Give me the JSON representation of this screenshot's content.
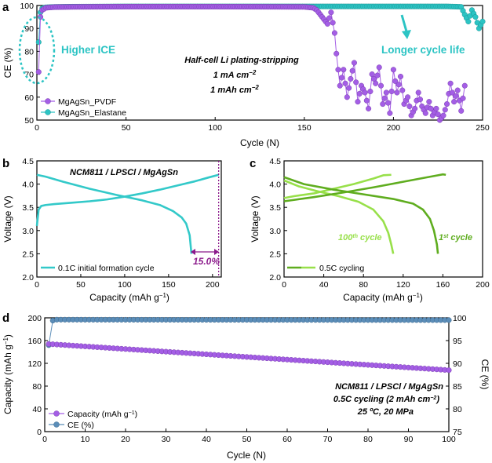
{
  "colors": {
    "pvdf": "#a45ee5",
    "elastane": "#2cc4c4",
    "formation": "#33c9c9",
    "percent": "#8b1a8b",
    "first_cycle": "#5fad1f",
    "hundredth_cycle": "#98e04a",
    "capacity": "#a45ee5",
    "ce_d": "#5b8db8"
  },
  "panel_labels": {
    "a": "a",
    "b": "b",
    "c": "c",
    "d": "d"
  },
  "chart_data": [
    {
      "id": "a",
      "type": "scatter",
      "xlabel": "Cycle (N)",
      "ylabel": "CE (%)",
      "xlim": [
        0,
        250
      ],
      "ylim": [
        50,
        100
      ],
      "xticks": [
        "0",
        "50",
        "100",
        "150",
        "200",
        "250"
      ],
      "yticks": [
        "50",
        "60",
        "70",
        "80",
        "90",
        "100"
      ],
      "annotations": {
        "higher_ice": "Higher ICE",
        "longer_life": "Longer cycle life",
        "title_line1": "Half-cell Li plating-stripping",
        "title_line2": "1 mA cm",
        "title_line2_sup": "−2",
        "title_line3": "1 mAh cm",
        "title_line3_sup": "−2"
      },
      "legend": [
        "MgAgSn_PVDF",
        "MgAgSn_Elastane"
      ],
      "series": [
        {
          "name": "MgAgSn_PVDF",
          "x": [
            1,
            2,
            3,
            4,
            5,
            10,
            20,
            50,
            100,
            150,
            155,
            157,
            159,
            161,
            163,
            165,
            167,
            168,
            170,
            172,
            174,
            176,
            178,
            180,
            182,
            184,
            186,
            188,
            190,
            192,
            194,
            196,
            198,
            200,
            202,
            204,
            206,
            208,
            210,
            212,
            214,
            216,
            218,
            220,
            222,
            224,
            226,
            228,
            230,
            232,
            234,
            236,
            238,
            240
          ],
          "values": [
            71,
            95,
            98,
            98.5,
            99,
            99.3,
            99.4,
            99.5,
            99.5,
            99.4,
            99,
            98,
            96,
            94,
            92,
            97,
            88,
            79,
            65,
            72,
            60,
            68,
            75,
            58,
            65,
            62,
            55,
            70,
            66,
            73,
            57,
            62,
            53,
            72,
            62,
            69,
            57,
            60,
            52,
            55,
            62,
            56,
            53,
            58,
            52,
            55,
            50,
            52,
            57,
            66,
            58,
            63,
            54,
            65
          ]
        },
        {
          "name": "MgAgSn_Elastane",
          "x": [
            1,
            2,
            3,
            4,
            5,
            10,
            20,
            50,
            100,
            150,
            200,
            230,
            235,
            238,
            240,
            242,
            244,
            246,
            248,
            250
          ],
          "values": [
            84,
            97,
            98.7,
            99,
            99.2,
            99.4,
            99.5,
            99.6,
            99.6,
            99.6,
            99.6,
            99.6,
            99.5,
            99.4,
            96,
            93,
            98,
            95,
            90,
            93
          ]
        }
      ]
    },
    {
      "id": "b",
      "type": "line",
      "xlabel": "Capacity (mAh g",
      "xlabel_sup": "−1",
      "xlabel_end": ")",
      "ylabel": "Voltage (V)",
      "xlim": [
        0,
        210
      ],
      "ylim": [
        2.0,
        4.5
      ],
      "xticks": [
        "0",
        "50",
        "100",
        "150",
        "200"
      ],
      "yticks": [
        "2.0",
        "2.5",
        "3.0",
        "3.5",
        "4.0",
        "4.5"
      ],
      "title": "NCM811 / LPSCl / MgAgSn",
      "percent_label": "15.0%",
      "legend": [
        "0.1C initial formation cycle"
      ],
      "marker_x": 207,
      "series": [
        {
          "name": "charge",
          "x": [
            0,
            2,
            5,
            10,
            20,
            40,
            60,
            80,
            100,
            120,
            140,
            160,
            180,
            195,
            207
          ],
          "values": [
            3.1,
            3.45,
            3.53,
            3.55,
            3.57,
            3.6,
            3.63,
            3.67,
            3.73,
            3.8,
            3.88,
            3.97,
            4.06,
            4.14,
            4.2
          ]
        },
        {
          "name": "discharge",
          "x": [
            0,
            10,
            30,
            60,
            90,
            120,
            140,
            155,
            165,
            170,
            174,
            176
          ],
          "values": [
            4.2,
            4.16,
            4.05,
            3.9,
            3.77,
            3.65,
            3.55,
            3.42,
            3.28,
            3.15,
            2.9,
            2.5
          ]
        }
      ]
    },
    {
      "id": "c",
      "type": "line",
      "xlabel": "Capacity (mAh g",
      "xlabel_sup": "−1",
      "xlabel_end": ")",
      "ylabel": "Voltage (V)",
      "xlim": [
        0,
        200
      ],
      "ylim": [
        2.0,
        4.5
      ],
      "xticks": [
        "0",
        "40",
        "80",
        "120",
        "160",
        "200"
      ],
      "yticks": [
        "2.0",
        "2.5",
        "3.0",
        "3.5",
        "4.0",
        "4.5"
      ],
      "label_100": "100",
      "label_100_sup": "th",
      "label_100_end": " cycle",
      "label_1": "1",
      "label_1_sup": "st",
      "label_1_end": " cycle",
      "legend": [
        "0.5C cycling"
      ],
      "series": [
        {
          "name": "1st charge",
          "x": [
            0,
            10,
            30,
            60,
            90,
            120,
            140,
            155,
            160,
            163
          ],
          "values": [
            3.63,
            3.66,
            3.72,
            3.82,
            3.93,
            4.05,
            4.13,
            4.19,
            4.21,
            4.2
          ]
        },
        {
          "name": "1st discharge",
          "x": [
            0,
            20,
            50,
            80,
            110,
            130,
            140,
            147,
            151,
            154,
            155
          ],
          "values": [
            4.15,
            4.0,
            3.88,
            3.78,
            3.68,
            3.58,
            3.45,
            3.25,
            3.0,
            2.7,
            2.5
          ]
        },
        {
          "name": "100th charge",
          "x": [
            0,
            10,
            30,
            50,
            70,
            90,
            100,
            108
          ],
          "values": [
            3.7,
            3.74,
            3.8,
            3.9,
            4.0,
            4.12,
            4.19,
            4.2
          ]
        },
        {
          "name": "100th discharge",
          "x": [
            0,
            15,
            35,
            55,
            75,
            90,
            100,
            105,
            108,
            110
          ],
          "values": [
            4.08,
            3.95,
            3.84,
            3.74,
            3.62,
            3.45,
            3.2,
            2.95,
            2.7,
            2.5
          ]
        }
      ]
    },
    {
      "id": "d",
      "type": "scatter",
      "xlabel": "Cycle (N)",
      "ylabel_left": "Capacity (mAh g",
      "ylabel_left_sup": "−1",
      "ylabel_left_end": ")",
      "ylabel_right": "CE (%)",
      "xlim": [
        0,
        100
      ],
      "ylim_left": [
        0,
        200
      ],
      "ylim_right": [
        75,
        100
      ],
      "xticks": [
        "0",
        "10",
        "20",
        "30",
        "40",
        "50",
        "60",
        "70",
        "80",
        "90",
        "100"
      ],
      "yticks_left": [
        "0",
        "40",
        "80",
        "120",
        "160",
        "200"
      ],
      "yticks_right": [
        "75",
        "80",
        "85",
        "90",
        "95",
        "100"
      ],
      "annotations": {
        "line1": "NCM811 / LPSCl / MgAgSn",
        "line2": "0.5C cycling (2 mAh cm",
        "line2_sup": "−2",
        "line2_end": ")",
        "line3": "25 ºC, 20 MPa"
      },
      "legend": [
        "Capacity (mAh g",
        "CE (%)"
      ],
      "legend_cap_sup": "−1",
      "legend_cap_end": ")",
      "series": [
        {
          "name": "Capacity",
          "start": 154,
          "end": 108,
          "x_start": 1,
          "x_end": 100,
          "axis": "left"
        },
        {
          "name": "CE",
          "x": [
            1,
            2,
            3,
            100
          ],
          "values": [
            94,
            99.4,
            99.6,
            99.5
          ],
          "axis": "right"
        }
      ]
    }
  ]
}
